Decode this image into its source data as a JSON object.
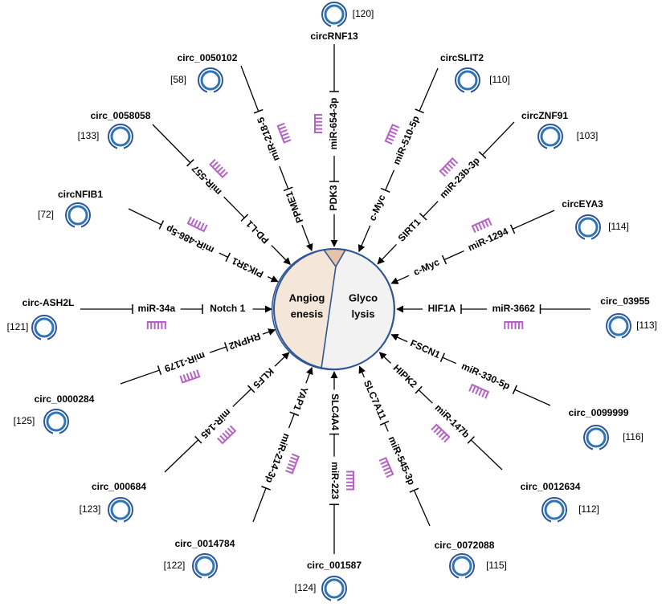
{
  "center": {
    "left": [
      "Angiog",
      "enesis"
    ],
    "right": [
      "Glyco",
      "lysis"
    ]
  },
  "spokes": [
    {
      "circ": "circRNF13",
      "ref": "[120]",
      "mirna": "miR-654-3p",
      "target": "PDK3"
    },
    {
      "circ": "circ_0050102",
      "ref": "[58]",
      "mirna": "miR-218-5",
      "target": "PPME1"
    },
    {
      "circ": "circSLIT2",
      "ref": "[110]",
      "mirna": "miR-510-5p",
      "target": "c-Myc"
    },
    {
      "circ": "circ_0058058",
      "ref": "[133]",
      "mirna": "miR-557",
      "target": "PD-L1"
    },
    {
      "circ": "circZNF91",
      "ref": "[103]",
      "mirna": "miR-23b-3p",
      "target": "SIRT1"
    },
    {
      "circ": "circNFIB1",
      "ref": "[72]",
      "mirna": "miR-486-5p",
      "target": "PIK3R1"
    },
    {
      "circ": "circEYA3",
      "ref": "[114]",
      "mirna": "miR-1294",
      "target": "c-Myc"
    },
    {
      "circ": "circ-ASH2L",
      "ref": "[121]",
      "mirna": "miR-34a",
      "target": "Notch 1"
    },
    {
      "circ": "circ_03955",
      "ref": "[113]",
      "mirna": "miR-3662",
      "target": "HIF1A"
    },
    {
      "circ": "circ_0000284",
      "ref": "[125]",
      "mirna": "miR-1179",
      "target": "RHPN2"
    },
    {
      "circ": "circ_0099999",
      "ref": "[116]",
      "mirna": "miR-330-5p",
      "target": "FSCN1"
    },
    {
      "circ": "circ_000684",
      "ref": "[123]",
      "mirna": "miR-145",
      "target": "KLF5"
    },
    {
      "circ": "circ_0012634",
      "ref": "[112]",
      "mirna": "miR-147b",
      "target": "HIPK2"
    },
    {
      "circ": "circ_0014784",
      "ref": "[122]",
      "mirna": "miR-214-3p",
      "target": "YAP1"
    },
    {
      "circ": "circ_0072088",
      "ref": "[115]",
      "mirna": "miR-545-3p",
      "target": "SLC7A11"
    },
    {
      "circ": "circ_001587",
      "ref": "[124]",
      "mirna": "miR-223",
      "target": "SLC4A4"
    }
  ]
}
